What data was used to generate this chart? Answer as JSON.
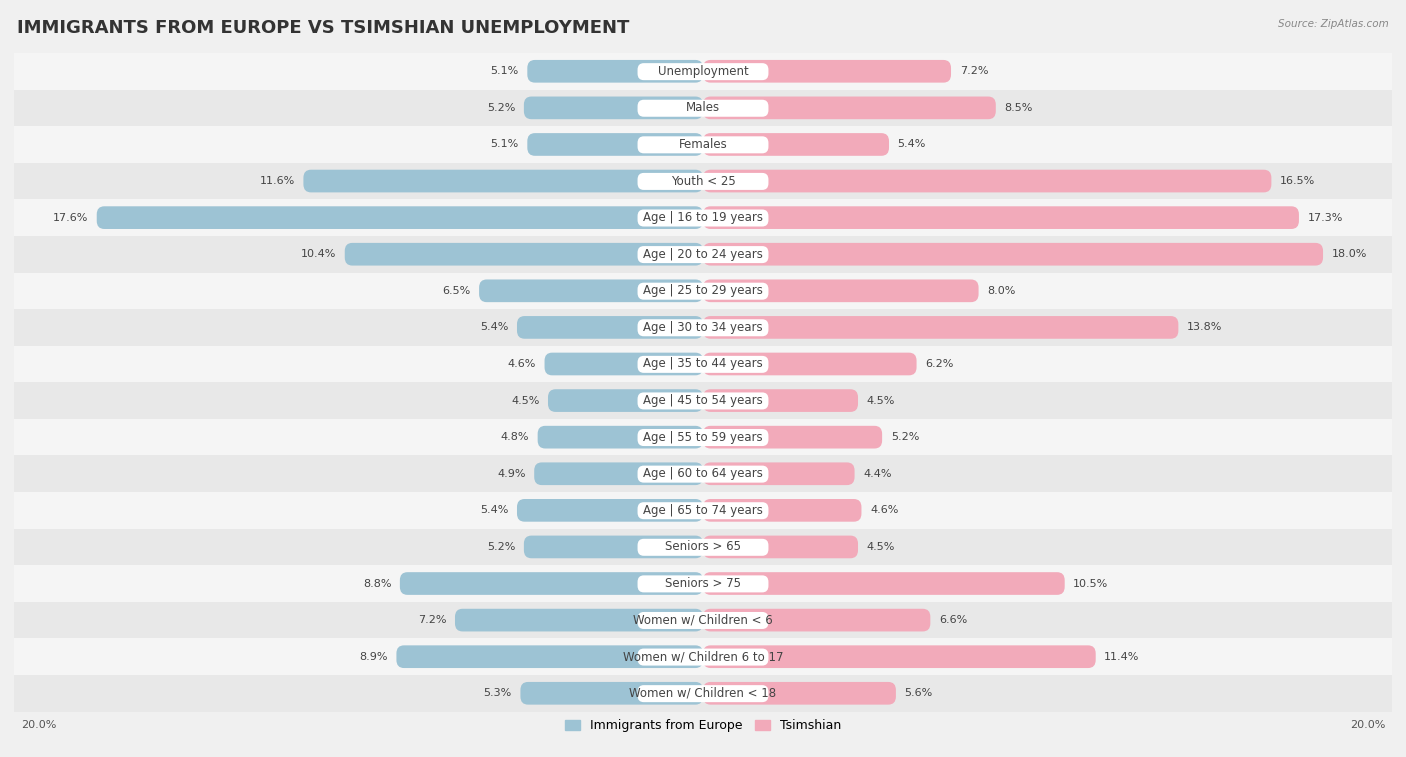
{
  "title": "IMMIGRANTS FROM EUROPE VS TSIMSHIAN UNEMPLOYMENT",
  "source": "Source: ZipAtlas.com",
  "categories": [
    "Unemployment",
    "Males",
    "Females",
    "Youth < 25",
    "Age | 16 to 19 years",
    "Age | 20 to 24 years",
    "Age | 25 to 29 years",
    "Age | 30 to 34 years",
    "Age | 35 to 44 years",
    "Age | 45 to 54 years",
    "Age | 55 to 59 years",
    "Age | 60 to 64 years",
    "Age | 65 to 74 years",
    "Seniors > 65",
    "Seniors > 75",
    "Women w/ Children < 6",
    "Women w/ Children 6 to 17",
    "Women w/ Children < 18"
  ],
  "left_values": [
    5.1,
    5.2,
    5.1,
    11.6,
    17.6,
    10.4,
    6.5,
    5.4,
    4.6,
    4.5,
    4.8,
    4.9,
    5.4,
    5.2,
    8.8,
    7.2,
    8.9,
    5.3
  ],
  "right_values": [
    7.2,
    8.5,
    5.4,
    16.5,
    17.3,
    18.0,
    8.0,
    13.8,
    6.2,
    4.5,
    5.2,
    4.4,
    4.6,
    4.5,
    10.5,
    6.6,
    11.4,
    5.6
  ],
  "left_color": "#9DC3D4",
  "right_color": "#F2AABA",
  "axis_max": 20.0,
  "row_bg_even": "#f5f5f5",
  "row_bg_odd": "#e8e8e8",
  "background_color": "#f0f0f0",
  "legend_left": "Immigrants from Europe",
  "legend_right": "Tsimshian",
  "title_fontsize": 13,
  "label_fontsize": 8.5,
  "value_fontsize": 8.0
}
